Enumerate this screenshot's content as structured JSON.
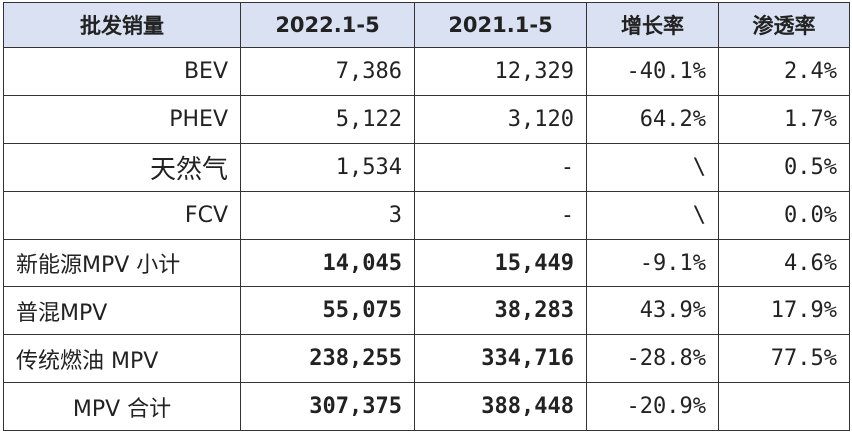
{
  "table": {
    "headers": [
      "批发销量",
      "2022.1-5",
      "2021.1-5",
      "增长率",
      "渗透率"
    ],
    "rows": [
      {
        "label": "BEV",
        "y2022": "7,386",
        "y2021": "12,329",
        "growth": "-40.1%",
        "penetration": "2.4%"
      },
      {
        "label": "PHEV",
        "y2022": "5,122",
        "y2021": "3,120",
        "growth": "64.2%",
        "penetration": "1.7%"
      },
      {
        "label": "天然气",
        "y2022": "1,534",
        "y2021": "-",
        "growth": "\\",
        "penetration": "0.5%"
      },
      {
        "label": "FCV",
        "y2022": "3",
        "y2021": "-",
        "growth": "\\",
        "penetration": "0.0%"
      },
      {
        "label": "新能源MPV 小计",
        "y2022": "14,045",
        "y2021": "15,449",
        "growth": "-9.1%",
        "penetration": "4.6%"
      },
      {
        "label": "普混MPV",
        "y2022": "55,075",
        "y2021": "38,283",
        "growth": "43.9%",
        "penetration": "17.9%"
      },
      {
        "label": "传统燃油 MPV",
        "y2022": "238,255",
        "y2021": "334,716",
        "growth": "-28.8%",
        "penetration": "77.5%"
      },
      {
        "label": "MPV 合计",
        "y2022": "307,375",
        "y2021": "388,448",
        "growth": "-20.9%",
        "penetration": ""
      }
    ]
  },
  "colors": {
    "header_background": "#d9e1f2",
    "border": "#333333",
    "text": "#222222"
  }
}
